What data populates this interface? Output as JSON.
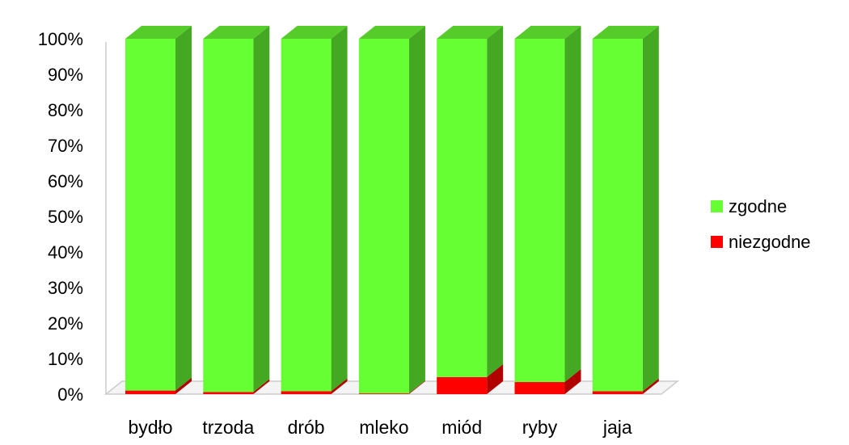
{
  "chart_data": {
    "type": "bar",
    "stacked": true,
    "normalized_percent": true,
    "three_d": true,
    "categories": [
      "bydło",
      "trzoda",
      "drób",
      "mleko",
      "miód",
      "ryby",
      "jaja"
    ],
    "series": [
      {
        "name": "niezgodne",
        "values": [
          1.0,
          0.6,
          0.8,
          0.2,
          4.8,
          3.4,
          0.8
        ]
      },
      {
        "name": "zgodne",
        "values": [
          99.0,
          99.4,
          99.2,
          99.8,
          95.2,
          96.6,
          99.2
        ]
      }
    ],
    "yticks": [
      "0%",
      "10%",
      "20%",
      "30%",
      "40%",
      "50%",
      "60%",
      "70%",
      "80%",
      "90%",
      "100%"
    ],
    "ylim": [
      0,
      100
    ],
    "legend": {
      "placement": "right",
      "entries": [
        "zgodne",
        "niezgodne"
      ]
    },
    "colors": {
      "zgodne_front": "#66ff33",
      "zgodne_side": "#44a822",
      "zgodne_top": "#55cc2a",
      "niezgodne_front": "#ff0000",
      "niezgodne_side": "#b00000",
      "niezgodne_top": "#d80000",
      "floor": "#cccccc"
    },
    "grid": false
  }
}
